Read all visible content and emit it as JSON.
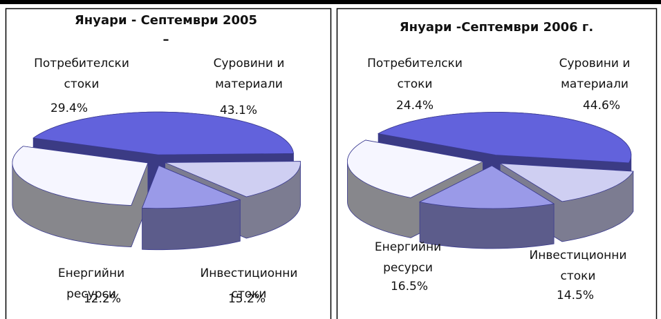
{
  "chart_data": [
    {
      "type": "pie3d",
      "title": "Януари -  Септември 2005",
      "subtitle": "–",
      "categories": [
        [
          "Суровини и",
          "материали"
        ],
        [
          "Инвестиционни",
          "стоки"
        ],
        [
          "Енергийни",
          "ресурси"
        ],
        [
          "Потребителски",
          "стоки"
        ]
      ],
      "values": [
        43.1,
        15.2,
        12.2,
        29.4
      ],
      "value_labels": [
        "43.1%",
        "15.2%",
        "12.2%",
        "29.4%"
      ],
      "colors": [
        "#6262dc",
        "#cfcff2",
        "#9a9ae8",
        "#f6f6ff"
      ]
    },
    {
      "type": "pie3d",
      "title": "Януари -Септември 2006 г.",
      "categories": [
        [
          "Суровини и",
          "материали"
        ],
        [
          "Инвестиционни",
          "стоки"
        ],
        [
          "Енергийни",
          "ресурси"
        ],
        [
          "Потребителски",
          "стоки"
        ]
      ],
      "values": [
        44.6,
        14.5,
        16.5,
        24.4
      ],
      "value_labels": [
        "44.6%",
        "14.5%",
        "16.5%",
        "24.4%"
      ],
      "colors": [
        "#6262dc",
        "#cfcff2",
        "#9a9ae8",
        "#f6f6ff"
      ]
    }
  ]
}
